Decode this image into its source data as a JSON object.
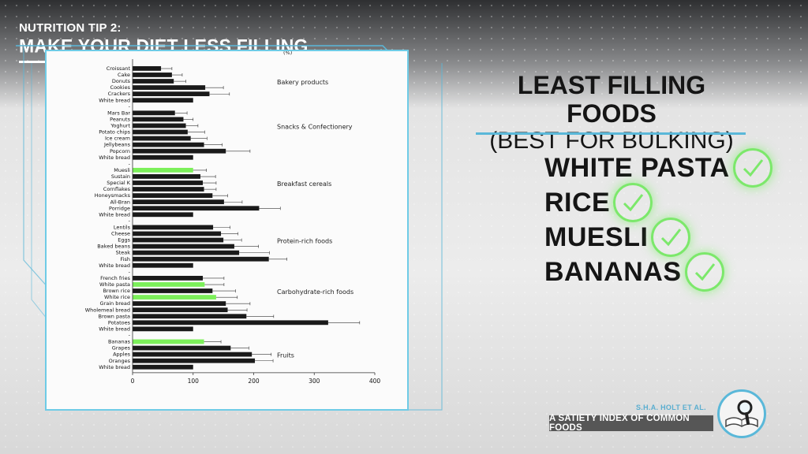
{
  "header": {
    "kicker": "NUTRITION TIP 2:",
    "title": "MAKE YOUR DIET LESS FILLING"
  },
  "right_panel": {
    "heading_line1": "LEAST FILLING FOODS",
    "heading_line2": "(BEST FOR BULKING)",
    "foods": [
      "WHITE PASTA",
      "RICE",
      "MUESLI",
      "BANANAS"
    ]
  },
  "citation": {
    "author": "S.H.A. HOLT ET AL.",
    "title": "A SATIETY INDEX OF COMMON FOODS"
  },
  "icons": [
    "checkmark-icon",
    "book-magnifier-icon"
  ],
  "colors": {
    "highlight": "#7CF05A",
    "bar": "#1a1a1a",
    "accent": "#5ab8d9"
  },
  "chart_data": {
    "type": "bar",
    "orientation": "horizontal",
    "unit_label": "(%)",
    "xlim": [
      0,
      400
    ],
    "xticks": [
      0,
      100,
      200,
      300,
      400
    ],
    "groups": [
      {
        "name": "Bakery products",
        "items": [
          {
            "label": "Croissant",
            "value": 47,
            "err": 18
          },
          {
            "label": "Cake",
            "value": 65,
            "err": 17
          },
          {
            "label": "Donuts",
            "value": 68,
            "err": 20
          },
          {
            "label": "Cookies",
            "value": 120,
            "err": 30
          },
          {
            "label": "Crackers",
            "value": 127,
            "err": 33
          },
          {
            "label": "White bread",
            "value": 100,
            "err": 0
          }
        ]
      },
      {
        "name": "Snacks & Confectionery",
        "items": [
          {
            "label": "Mars Bar",
            "value": 70,
            "err": 20
          },
          {
            "label": "Peanuts",
            "value": 84,
            "err": 16
          },
          {
            "label": "Yoghurt",
            "value": 88,
            "err": 20
          },
          {
            "label": "Potato chips",
            "value": 91,
            "err": 28
          },
          {
            "label": "Ice cream",
            "value": 96,
            "err": 27
          },
          {
            "label": "Jellybeans",
            "value": 118,
            "err": 30
          },
          {
            "label": "Popcorn",
            "value": 154,
            "err": 40
          },
          {
            "label": "White bread",
            "value": 100,
            "err": 0
          }
        ]
      },
      {
        "name": "Breakfast cereals",
        "items": [
          {
            "label": "Muesli",
            "value": 100,
            "err": 22,
            "highlight": true
          },
          {
            "label": "Sustain",
            "value": 112,
            "err": 25
          },
          {
            "label": "Special K",
            "value": 116,
            "err": 22
          },
          {
            "label": "Cornflakes",
            "value": 118,
            "err": 20
          },
          {
            "label": "Honeysmacks",
            "value": 132,
            "err": 25
          },
          {
            "label": "All-Bran",
            "value": 151,
            "err": 30
          },
          {
            "label": "Porridge",
            "value": 209,
            "err": 35
          },
          {
            "label": "White bread",
            "value": 100,
            "err": 0
          }
        ]
      },
      {
        "name": "Protein-rich foods",
        "items": [
          {
            "label": "Lentils",
            "value": 133,
            "err": 28
          },
          {
            "label": "Cheese",
            "value": 146,
            "err": 28
          },
          {
            "label": "Eggs",
            "value": 150,
            "err": 30
          },
          {
            "label": "Baked beans",
            "value": 168,
            "err": 40
          },
          {
            "label": "Steak",
            "value": 176,
            "err": 50
          },
          {
            "label": "Fish",
            "value": 225,
            "err": 30
          },
          {
            "label": "White bread",
            "value": 100,
            "err": 0
          }
        ]
      },
      {
        "name": "Carbohydrate-rich foods",
        "items": [
          {
            "label": "French fries",
            "value": 116,
            "err": 35
          },
          {
            "label": "White pasta",
            "value": 119,
            "err": 32,
            "highlight": true
          },
          {
            "label": "Brown rice",
            "value": 132,
            "err": 38
          },
          {
            "label": "White rice",
            "value": 138,
            "err": 35,
            "highlight": true
          },
          {
            "label": "Grain bread",
            "value": 154,
            "err": 40
          },
          {
            "label": "Wholemeal bread",
            "value": 157,
            "err": 32
          },
          {
            "label": "Brown pasta",
            "value": 188,
            "err": 45
          },
          {
            "label": "Potatoes",
            "value": 323,
            "err": 52
          },
          {
            "label": "White bread",
            "value": 100,
            "err": 0
          }
        ]
      },
      {
        "name": "Fruits",
        "items": [
          {
            "label": "Bananas",
            "value": 118,
            "err": 28,
            "highlight": true
          },
          {
            "label": "Grapes",
            "value": 162,
            "err": 30
          },
          {
            "label": "Apples",
            "value": 197,
            "err": 32
          },
          {
            "label": "Oranges",
            "value": 202,
            "err": 30
          },
          {
            "label": "White bread",
            "value": 100,
            "err": 0
          }
        ]
      }
    ]
  }
}
